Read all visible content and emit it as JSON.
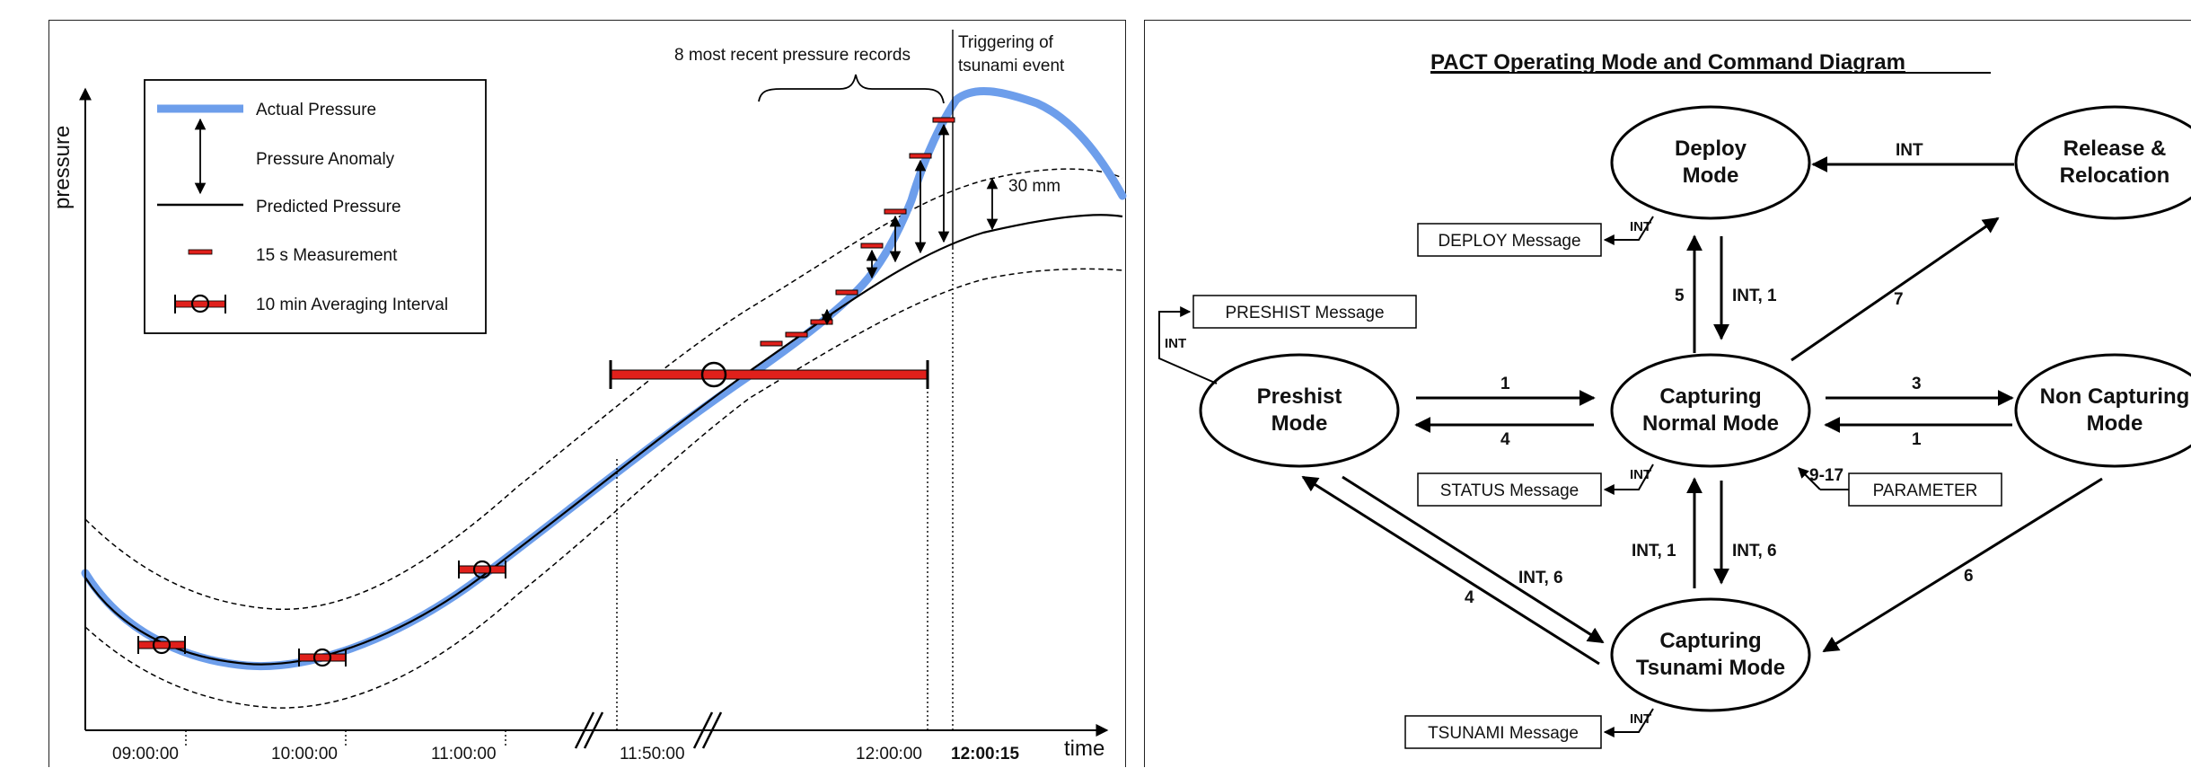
{
  "chart": {
    "ylabel": "pressure",
    "xlabel": "time",
    "xticks": [
      "09:00:00",
      "10:00:00",
      "11:00:00",
      "11:50:00",
      "12:00:00",
      "12:00:15"
    ],
    "legend": {
      "actual": "Actual Pressure",
      "anomaly": "Pressure Anomaly",
      "predicted": "Predicted Pressure",
      "measurement": "15 s Measurement",
      "averaging": "10 min Averaging Interval"
    },
    "annotation_records": "8 most recent pressure records",
    "annotation_trigger_line1": "Triggering of",
    "annotation_trigger_line2": "tsunami event",
    "annotation_threshold": "30 mm",
    "colors": {
      "actual": "#6d9eeb",
      "measurement": "#e0201b",
      "predicted": "#000000"
    }
  },
  "diagram": {
    "title": "PACT Operating Mode and Command Diagram",
    "nodes": {
      "deploy": [
        "Deploy",
        "Mode"
      ],
      "release": [
        "Release &",
        "Relocation"
      ],
      "preshist": [
        "Preshist",
        "Mode"
      ],
      "normal": [
        "Capturing",
        "Normal Mode"
      ],
      "noncap": [
        "Non Capturing",
        "Mode"
      ],
      "tsunami": [
        "Capturing",
        "Tsunami Mode"
      ]
    },
    "messages": {
      "deploy": "DEPLOY Message",
      "preshist": "PRESHIST Message",
      "status": "STATUS Message",
      "parameter": "PARAMETER",
      "tsunami": "TSUNAMI Message"
    },
    "edge_labels": {
      "release_deploy": "INT",
      "deploy_msg": "INT",
      "preshist_msg": "INT",
      "status_msg": "INT",
      "tsunami_msg": "INT",
      "normal_deploy": "5",
      "deploy_normal": "INT, 1",
      "normal_release": "7",
      "preshist_normal": "1",
      "normal_preshist": "4",
      "normal_noncap": "3",
      "noncap_normal": "1",
      "param_normal": "9-17",
      "tsunami_normal": "INT, 1",
      "normal_tsunami": "INT, 6",
      "preshist_tsunami": "INT, 6",
      "tsunami_preshist": "4",
      "noncap_tsunami": "6"
    }
  }
}
